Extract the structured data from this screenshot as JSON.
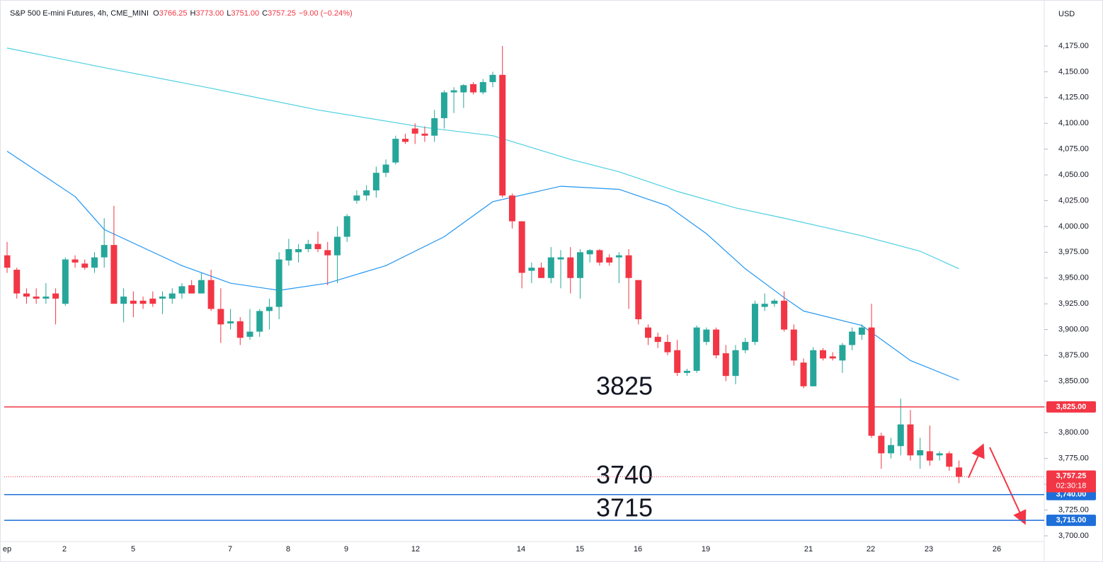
{
  "header": {
    "title": "S&P 500 E-mini Futures, 4h, CME_MINI",
    "ohlc": [
      [
        "O",
        "3766.25"
      ],
      [
        "H",
        "3773.00"
      ],
      [
        "L",
        "3751.00"
      ],
      [
        "C",
        "3757.25"
      ]
    ],
    "change": "−9.00 (−0.24%)",
    "currency": "USD"
  },
  "chart_data": {
    "type": "candlestick",
    "up_color": "#26a69a",
    "down_color": "#f23645",
    "ylim": [
      3694.5,
      4214.1
    ],
    "yticks": [
      {
        "value": 3700,
        "label": "3,700.00"
      },
      {
        "value": 3725,
        "label": "3,725.00"
      },
      {
        "value": 3750,
        "label": "3,750.00"
      },
      {
        "value": 3775,
        "label": "3,775.00"
      },
      {
        "value": 3800,
        "label": "3,800.00"
      },
      {
        "value": 3825,
        "label": "3,825.00"
      },
      {
        "value": 3850,
        "label": "3,850.00"
      },
      {
        "value": 3875,
        "label": "3,875.00"
      },
      {
        "value": 3900,
        "label": "3,900.00"
      },
      {
        "value": 3925,
        "label": "3,925.00"
      },
      {
        "value": 3950,
        "label": "3,950.00"
      },
      {
        "value": 3975,
        "label": "3,975.00"
      },
      {
        "value": 4000,
        "label": "4,000.00"
      },
      {
        "value": 4025,
        "label": "4,025.00"
      },
      {
        "value": 4050,
        "label": "4,050.00"
      },
      {
        "value": 4075,
        "label": "4,075.00"
      },
      {
        "value": 4100,
        "label": "4,100.00"
      },
      {
        "value": 4125,
        "label": "4,125.00"
      },
      {
        "value": 4150,
        "label": "4,150.00"
      },
      {
        "value": 4175,
        "label": "4,175.00"
      }
    ],
    "xlabels": [
      "ep",
      "2",
      "5",
      "7",
      "8",
      "9",
      "12",
      "14",
      "15",
      "16",
      "19",
      "21",
      "22",
      "23",
      "26"
    ],
    "open": [
      3972,
      3958,
      3935,
      3932,
      3930,
      3935,
      3925,
      3968,
      3964,
      3960,
      3970,
      3982,
      3925,
      3928,
      3928,
      3930,
      3930,
      3930,
      3935,
      3943,
      3935,
      3948,
      3920,
      3906,
      3908,
      3893,
      3898,
      3918,
      3922,
      3967,
      3975,
      3978,
      3983,
      3977,
      3972,
      3990,
      4025,
      4030,
      4035,
      4052,
      4062,
      4085,
      4095,
      4090,
      4088,
      4105,
      4130,
      4130,
      4138,
      4130,
      4140,
      4147,
      4030,
      4005,
      3957,
      3960,
      3950,
      3968,
      3970,
      3950,
      3973,
      3977,
      3970,
      3970,
      3972,
      3948,
      3902,
      3893,
      3888,
      3880,
      3858,
      3860,
      3888,
      3900,
      3877,
      3855,
      3880,
      3888,
      3922,
      3925,
      3928,
      3900,
      3868,
      3845,
      3880,
      3874,
      3870,
      3885,
      3895,
      3902,
      3797,
      3780,
      3787,
      3808,
      3778,
      3782,
      3778,
      3780,
      3766.25
    ],
    "high": [
      3985,
      3960,
      3940,
      3940,
      3945,
      3940,
      3970,
      3972,
      3968,
      3975,
      4008,
      4020,
      3940,
      3937,
      3932,
      3937,
      3937,
      3940,
      3945,
      3948,
      3955,
      3958,
      3940,
      3920,
      3912,
      3920,
      3920,
      3930,
      3975,
      3988,
      3983,
      3987,
      3995,
      3985,
      4000,
      4012,
      4035,
      4040,
      4058,
      4065,
      4088,
      4090,
      4100,
      4097,
      4113,
      4132,
      4135,
      4138,
      4140,
      4143,
      4150,
      4175,
      4032,
      4005,
      3965,
      3965,
      3980,
      3977,
      3980,
      3978,
      3978,
      3978,
      3973,
      3975,
      3978,
      3948,
      3905,
      3897,
      3895,
      3890,
      3862,
      3904,
      3902,
      3902,
      3885,
      3885,
      3892,
      3928,
      3935,
      3930,
      3937,
      3905,
      3872,
      3883,
      3882,
      3878,
      3887,
      3902,
      3905,
      3925,
      3800,
      3795,
      3833,
      3822,
      3795,
      3807,
      3782,
      3782,
      3773
    ],
    "low": [
      3955,
      3930,
      3925,
      3925,
      3925,
      3905,
      3923,
      3960,
      3958,
      3955,
      3960,
      3925,
      3907,
      3912,
      3920,
      3922,
      3915,
      3925,
      3930,
      3935,
      3935,
      3918,
      3887,
      3900,
      3885,
      3890,
      3893,
      3900,
      3910,
      3962,
      3965,
      3975,
      3975,
      3943,
      3945,
      3985,
      4022,
      4025,
      4028,
      4048,
      4060,
      4080,
      4080,
      4082,
      4082,
      4095,
      4110,
      4115,
      4128,
      4128,
      4135,
      4028,
      3998,
      3940,
      3945,
      3950,
      3945,
      3940,
      3935,
      3930,
      3965,
      3962,
      3962,
      3945,
      3920,
      3905,
      3885,
      3882,
      3875,
      3855,
      3855,
      3858,
      3885,
      3872,
      3850,
      3847,
      3877,
      3885,
      3918,
      3922,
      3898,
      3865,
      3843,
      3845,
      3870,
      3870,
      3858,
      3880,
      3890,
      3795,
      3765,
      3775,
      3778,
      3773,
      3765,
      3768,
      3773,
      3763,
      3751
    ],
    "close": [
      3960,
      3935,
      3932,
      3930,
      3932,
      3930,
      3968,
      3965,
      3960,
      3970,
      3982,
      3925,
      3932,
      3925,
      3925,
      3925,
      3932,
      3935,
      3942,
      3935,
      3948,
      3920,
      3905,
      3908,
      3892,
      3898,
      3918,
      3922,
      3968,
      3978,
      3978,
      3983,
      3978,
      3972,
      3990,
      4010,
      4030,
      4035,
      4052,
      4060,
      4085,
      4082,
      4090,
      4088,
      4105,
      4130,
      4132,
      4137,
      4130,
      4140,
      4147,
      4030,
      4005,
      3955,
      3960,
      3950,
      3970,
      3970,
      3950,
      3975,
      3977,
      3965,
      3965,
      3972,
      3950,
      3910,
      3892,
      3888,
      3878,
      3858,
      3860,
      3902,
      3900,
      3875,
      3855,
      3880,
      3888,
      3925,
      3925,
      3928,
      3900,
      3870,
      3845,
      3880,
      3872,
      3872,
      3885,
      3898,
      3902,
      3797,
      3780,
      3788,
      3808,
      3778,
      3783,
      3773,
      3780,
      3767,
      3757.25
    ],
    "lines": [
      {
        "color": "#4dd0e1",
        "x": [
          0,
          10,
          21,
          32,
          43,
          50,
          58,
          63,
          69,
          75,
          80,
          88,
          94,
          98
        ],
        "values": [
          4173,
          4154,
          4134,
          4113,
          4096,
          4088,
          4065,
          4053,
          4034,
          4018,
          4008,
          3991,
          3976,
          3959
        ]
      },
      {
        "color": "#2196f3",
        "x": [
          0,
          7,
          10,
          18,
          23,
          28,
          33,
          39,
          45,
          50,
          57,
          63,
          68,
          72,
          76,
          80,
          82,
          88,
          93,
          98
        ],
        "values": [
          4073,
          4029,
          3997,
          3962,
          3945,
          3938,
          3945,
          3962,
          3990,
          4024,
          4039,
          4036,
          4020,
          3993,
          3959,
          3931,
          3918,
          3904,
          3870,
          3851
        ]
      }
    ],
    "levels": [
      {
        "value": 3825,
        "label": "3825",
        "axis_label": "3,825.00",
        "color": "#f23645"
      },
      {
        "value": 3740,
        "label": "3740",
        "axis_label": "3,740.00",
        "color": "#1e6fd9"
      },
      {
        "value": 3715,
        "label": "3715",
        "axis_label": "3,715.00",
        "color": "#1e6fd9"
      }
    ],
    "last": {
      "value": 3757.25,
      "label": "3,757.25",
      "countdown": "02:30:18",
      "color": "#f23645"
    }
  }
}
